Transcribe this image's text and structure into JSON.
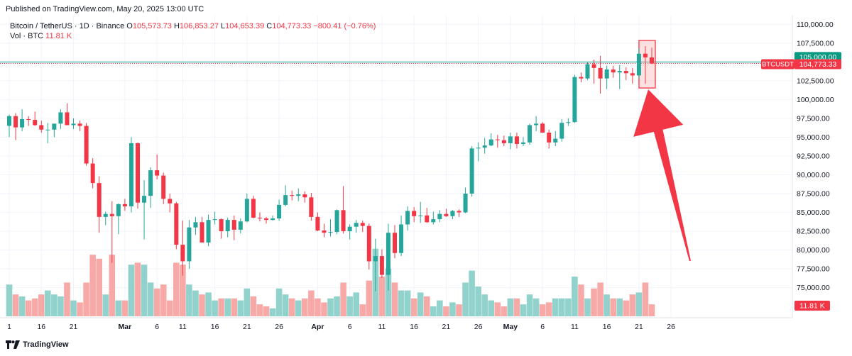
{
  "header": {
    "published": "Published on TradingView.com, May 20, 2025 13:00 UTC"
  },
  "legend": {
    "symbol": "Bitcoin / TetherUS · 1D · Binance",
    "o_label": "O",
    "o": "105,573.73",
    "h_label": "H",
    "h": "106,853.27",
    "l_label": "L",
    "l": "104,653.39",
    "c_label": "C",
    "c": "104,773.33",
    "change": "−800.41 (−0.76%)",
    "vol_label": "Vol · BTC",
    "vol": "11.81 K"
  },
  "footer": {
    "brand": "TradingView"
  },
  "colors": {
    "up": "#26a69a",
    "down": "#f23645",
    "up_vol": "#92d2cc",
    "down_vol": "#f7a9a7",
    "level": "#089981",
    "arrow": "#f23645"
  },
  "chart_data": {
    "type": "candlestick",
    "symbol": "BTCUSDT",
    "ylim": [
      72800,
      111500
    ],
    "y_ticks": [
      "110,000.00",
      "107,500.00",
      "105,000.00",
      "102,500.00",
      "100,000.00",
      "97,500.00",
      "95,000.00",
      "92,500.00",
      "90,000.00",
      "87,500.00",
      "85,000.00",
      "82,500.00",
      "80,000.00",
      "77,500.00",
      "75,000.00"
    ],
    "y_tick_values": [
      110000,
      107500,
      105000,
      102500,
      100000,
      97500,
      95000,
      92500,
      90000,
      87500,
      85000,
      82500,
      80000,
      77500,
      75000
    ],
    "x_tick_labels": [
      {
        "i": 0,
        "label": "1"
      },
      {
        "i": 5,
        "label": "16"
      },
      {
        "i": 10,
        "label": "21"
      },
      {
        "i": 18,
        "label": "Mar"
      },
      {
        "i": 23,
        "label": "6"
      },
      {
        "i": 27,
        "label": "11"
      },
      {
        "i": 32,
        "label": "16"
      },
      {
        "i": 37,
        "label": "21"
      },
      {
        "i": 42,
        "label": "26"
      },
      {
        "i": 48,
        "label": "Apr"
      },
      {
        "i": 53,
        "label": "6"
      },
      {
        "i": 58,
        "label": "11"
      },
      {
        "i": 63,
        "label": "16"
      },
      {
        "i": 68,
        "label": "21"
      },
      {
        "i": 73,
        "label": "26"
      },
      {
        "i": 78,
        "label": "May"
      },
      {
        "i": 83,
        "label": "6"
      },
      {
        "i": 88,
        "label": "11"
      },
      {
        "i": 93,
        "label": "16"
      },
      {
        "i": 98,
        "label": "21"
      },
      {
        "i": 103,
        "label": "26"
      }
    ],
    "horizontal_level": {
      "value": 105000,
      "label": "105,000.00"
    },
    "last_price": {
      "label": "BTCUSDT",
      "value": "104,773.33"
    },
    "volume_label": "11.81 K",
    "candles": [
      {
        "o": 96500,
        "h": 98000,
        "l": 95000,
        "c": 97800,
        "v": 1.6
      },
      {
        "o": 97800,
        "h": 98200,
        "l": 94600,
        "c": 96300,
        "v": 1.1
      },
      {
        "o": 96300,
        "h": 98700,
        "l": 95800,
        "c": 97400,
        "v": 1.0
      },
      {
        "o": 97400,
        "h": 97800,
        "l": 96500,
        "c": 97300,
        "v": 0.8
      },
      {
        "o": 97300,
        "h": 98400,
        "l": 96500,
        "c": 96600,
        "v": 0.9
      },
      {
        "o": 96600,
        "h": 97200,
        "l": 95600,
        "c": 96000,
        "v": 1.1
      },
      {
        "o": 96000,
        "h": 96900,
        "l": 94200,
        "c": 96000,
        "v": 1.3
      },
      {
        "o": 96000,
        "h": 96800,
        "l": 95000,
        "c": 96800,
        "v": 1.1
      },
      {
        "o": 96800,
        "h": 98700,
        "l": 96100,
        "c": 98300,
        "v": 1.0
      },
      {
        "o": 98300,
        "h": 99500,
        "l": 96900,
        "c": 96600,
        "v": 1.7
      },
      {
        "o": 96600,
        "h": 97500,
        "l": 96100,
        "c": 96800,
        "v": 0.8
      },
      {
        "o": 96800,
        "h": 97200,
        "l": 95800,
        "c": 96500,
        "v": 0.7
      },
      {
        "o": 96500,
        "h": 96900,
        "l": 91200,
        "c": 91500,
        "v": 1.7
      },
      {
        "o": 91500,
        "h": 92200,
        "l": 88200,
        "c": 88900,
        "v": 3.1
      },
      {
        "o": 88900,
        "h": 89800,
        "l": 82300,
        "c": 84400,
        "v": 2.9
      },
      {
        "o": 84400,
        "h": 85100,
        "l": 83300,
        "c": 84800,
        "v": 1.1
      },
      {
        "o": 84800,
        "h": 86500,
        "l": 78300,
        "c": 84500,
        "v": 3.1
      },
      {
        "o": 84500,
        "h": 86200,
        "l": 82100,
        "c": 86100,
        "v": 0.8
      },
      {
        "o": 86100,
        "h": 86800,
        "l": 85200,
        "c": 85800,
        "v": 0.8
      },
      {
        "o": 85800,
        "h": 95000,
        "l": 85000,
        "c": 94200,
        "v": 2.6
      },
      {
        "o": 94200,
        "h": 94300,
        "l": 85500,
        "c": 86300,
        "v": 2.7
      },
      {
        "o": 86300,
        "h": 89300,
        "l": 81400,
        "c": 87200,
        "v": 2.6
      },
      {
        "o": 87200,
        "h": 91000,
        "l": 85600,
        "c": 90600,
        "v": 1.7
      },
      {
        "o": 90600,
        "h": 92700,
        "l": 89400,
        "c": 89900,
        "v": 1.4
      },
      {
        "o": 89900,
        "h": 90300,
        "l": 86100,
        "c": 86800,
        "v": 1.6
      },
      {
        "o": 86800,
        "h": 87500,
        "l": 85000,
        "c": 86200,
        "v": 0.8
      },
      {
        "o": 86200,
        "h": 86400,
        "l": 80100,
        "c": 80700,
        "v": 2.7
      },
      {
        "o": 80700,
        "h": 83900,
        "l": 76600,
        "c": 78500,
        "v": 2.6
      },
      {
        "o": 78500,
        "h": 84000,
        "l": 77500,
        "c": 83000,
        "v": 1.6
      },
      {
        "o": 83000,
        "h": 84400,
        "l": 82000,
        "c": 83700,
        "v": 1.3
      },
      {
        "o": 83700,
        "h": 84400,
        "l": 81200,
        "c": 81000,
        "v": 1.1
      },
      {
        "o": 81000,
        "h": 84700,
        "l": 80500,
        "c": 84000,
        "v": 1.2
      },
      {
        "o": 84000,
        "h": 85100,
        "l": 83400,
        "c": 84100,
        "v": 0.8
      },
      {
        "o": 84100,
        "h": 84200,
        "l": 81500,
        "c": 82500,
        "v": 0.9
      },
      {
        "o": 82500,
        "h": 84300,
        "l": 81700,
        "c": 84000,
        "v": 0.9
      },
      {
        "o": 84000,
        "h": 84600,
        "l": 81300,
        "c": 82700,
        "v": 0.9
      },
      {
        "o": 82700,
        "h": 84200,
        "l": 82200,
        "c": 83800,
        "v": 0.8
      },
      {
        "o": 83800,
        "h": 87500,
        "l": 83700,
        "c": 86800,
        "v": 1.4
      },
      {
        "o": 86800,
        "h": 87200,
        "l": 84200,
        "c": 84300,
        "v": 1.0
      },
      {
        "o": 84300,
        "h": 85000,
        "l": 83800,
        "c": 84200,
        "v": 0.6
      },
      {
        "o": 84200,
        "h": 84400,
        "l": 83500,
        "c": 84000,
        "v": 0.5
      },
      {
        "o": 84000,
        "h": 84600,
        "l": 83900,
        "c": 84200,
        "v": 0.4
      },
      {
        "o": 84200,
        "h": 86700,
        "l": 83900,
        "c": 86000,
        "v": 1.4
      },
      {
        "o": 86000,
        "h": 88600,
        "l": 85800,
        "c": 87300,
        "v": 1.1
      },
      {
        "o": 87300,
        "h": 87900,
        "l": 86600,
        "c": 87200,
        "v": 0.9
      },
      {
        "o": 87200,
        "h": 88200,
        "l": 86500,
        "c": 87400,
        "v": 0.8
      },
      {
        "o": 87400,
        "h": 87800,
        "l": 86300,
        "c": 87000,
        "v": 0.9
      },
      {
        "o": 87000,
        "h": 87600,
        "l": 83900,
        "c": 84400,
        "v": 1.3
      },
      {
        "o": 84400,
        "h": 85000,
        "l": 82500,
        "c": 82600,
        "v": 0.9
      },
      {
        "o": 82600,
        "h": 83500,
        "l": 81700,
        "c": 82300,
        "v": 0.7
      },
      {
        "o": 82300,
        "h": 84100,
        "l": 81800,
        "c": 82400,
        "v": 0.9
      },
      {
        "o": 82400,
        "h": 85400,
        "l": 82100,
        "c": 85300,
        "v": 1.0
      },
      {
        "o": 85300,
        "h": 88500,
        "l": 82200,
        "c": 82500,
        "v": 1.7
      },
      {
        "o": 82500,
        "h": 83400,
        "l": 81400,
        "c": 83100,
        "v": 1.0
      },
      {
        "o": 83100,
        "h": 84000,
        "l": 82300,
        "c": 83600,
        "v": 1.2
      },
      {
        "o": 83600,
        "h": 83900,
        "l": 82400,
        "c": 83200,
        "v": 0.6
      },
      {
        "o": 83200,
        "h": 83500,
        "l": 77400,
        "c": 78500,
        "v": 1.8
      },
      {
        "o": 78500,
        "h": 81500,
        "l": 74500,
        "c": 79200,
        "v": 3.4
      },
      {
        "o": 79200,
        "h": 80100,
        "l": 76300,
        "c": 76700,
        "v": 2.0
      },
      {
        "o": 76700,
        "h": 83500,
        "l": 74600,
        "c": 82300,
        "v": 2.4
      },
      {
        "o": 82300,
        "h": 83300,
        "l": 78900,
        "c": 79600,
        "v": 1.7
      },
      {
        "o": 79600,
        "h": 84600,
        "l": 79200,
        "c": 83400,
        "v": 1.3
      },
      {
        "o": 83400,
        "h": 85800,
        "l": 82600,
        "c": 85200,
        "v": 1.3
      },
      {
        "o": 85200,
        "h": 85700,
        "l": 83700,
        "c": 84500,
        "v": 0.9
      },
      {
        "o": 84500,
        "h": 86400,
        "l": 83600,
        "c": 84600,
        "v": 1.2
      },
      {
        "o": 84600,
        "h": 85600,
        "l": 83600,
        "c": 83700,
        "v": 1.0
      },
      {
        "o": 83700,
        "h": 85100,
        "l": 83400,
        "c": 84100,
        "v": 0.5
      },
      {
        "o": 84100,
        "h": 85300,
        "l": 83700,
        "c": 84800,
        "v": 0.8
      },
      {
        "o": 84800,
        "h": 85500,
        "l": 84400,
        "c": 84500,
        "v": 0.5
      },
      {
        "o": 84500,
        "h": 85300,
        "l": 84100,
        "c": 85200,
        "v": 0.7
      },
      {
        "o": 85200,
        "h": 85400,
        "l": 84400,
        "c": 85000,
        "v": 0.6
      },
      {
        "o": 85000,
        "h": 88300,
        "l": 84900,
        "c": 87500,
        "v": 1.7
      },
      {
        "o": 87500,
        "h": 93800,
        "l": 87100,
        "c": 93500,
        "v": 2.3
      },
      {
        "o": 93500,
        "h": 94300,
        "l": 91800,
        "c": 93600,
        "v": 1.5
      },
      {
        "o": 93600,
        "h": 94900,
        "l": 92800,
        "c": 93900,
        "v": 1.1
      },
      {
        "o": 93900,
        "h": 95500,
        "l": 93800,
        "c": 94700,
        "v": 0.8
      },
      {
        "o": 94700,
        "h": 95300,
        "l": 93600,
        "c": 94600,
        "v": 0.7
      },
      {
        "o": 94600,
        "h": 95200,
        "l": 93800,
        "c": 94200,
        "v": 0.5
      },
      {
        "o": 94200,
        "h": 95600,
        "l": 93400,
        "c": 95100,
        "v": 0.9
      },
      {
        "o": 95100,
        "h": 95600,
        "l": 93500,
        "c": 94100,
        "v": 0.9
      },
      {
        "o": 94100,
        "h": 95000,
        "l": 93800,
        "c": 94300,
        "v": 0.6
      },
      {
        "o": 94300,
        "h": 96800,
        "l": 94000,
        "c": 96600,
        "v": 1.1
      },
      {
        "o": 96600,
        "h": 97800,
        "l": 95800,
        "c": 96800,
        "v": 0.9
      },
      {
        "o": 96800,
        "h": 97000,
        "l": 95800,
        "c": 95600,
        "v": 0.6
      },
      {
        "o": 95600,
        "h": 96000,
        "l": 93500,
        "c": 94300,
        "v": 0.7
      },
      {
        "o": 94300,
        "h": 95800,
        "l": 93800,
        "c": 94800,
        "v": 0.9
      },
      {
        "o": 94800,
        "h": 97400,
        "l": 94400,
        "c": 96900,
        "v": 0.9
      },
      {
        "o": 96900,
        "h": 97500,
        "l": 96500,
        "c": 97000,
        "v": 0.9
      },
      {
        "o": 97000,
        "h": 103300,
        "l": 96900,
        "c": 103000,
        "v": 2.0
      },
      {
        "o": 103000,
        "h": 103600,
        "l": 102300,
        "c": 102800,
        "v": 1.6
      },
      {
        "o": 102800,
        "h": 105000,
        "l": 102600,
        "c": 104700,
        "v": 0.9
      },
      {
        "o": 104700,
        "h": 105300,
        "l": 102100,
        "c": 104200,
        "v": 1.4
      },
      {
        "o": 104200,
        "h": 105800,
        "l": 100800,
        "c": 102800,
        "v": 1.7
      },
      {
        "o": 102800,
        "h": 104500,
        "l": 101400,
        "c": 104000,
        "v": 1.1
      },
      {
        "o": 104000,
        "h": 104500,
        "l": 102900,
        "c": 103600,
        "v": 0.9
      },
      {
        "o": 103600,
        "h": 104600,
        "l": 101400,
        "c": 103800,
        "v": 0.9
      },
      {
        "o": 103800,
        "h": 104300,
        "l": 102600,
        "c": 103500,
        "v": 0.8
      },
      {
        "o": 103500,
        "h": 104200,
        "l": 102100,
        "c": 103200,
        "v": 1.1
      },
      {
        "o": 103200,
        "h": 106800,
        "l": 102800,
        "c": 106100,
        "v": 1.2
      },
      {
        "o": 106100,
        "h": 107100,
        "l": 102100,
        "c": 105600,
        "v": 1.7
      },
      {
        "o": 105600,
        "h": 106900,
        "l": 104700,
        "c": 104800,
        "v": 0.6
      }
    ]
  }
}
